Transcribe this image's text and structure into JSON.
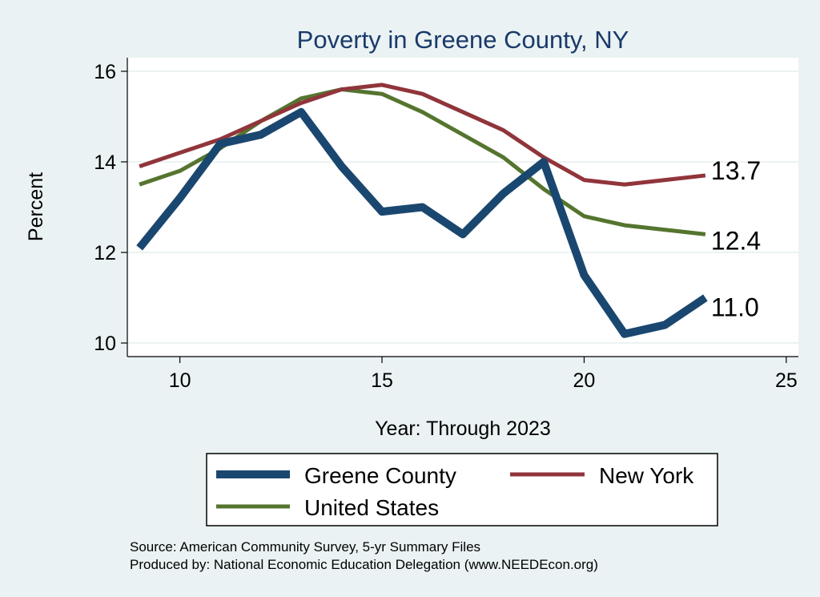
{
  "chart_data": {
    "type": "line",
    "title": "Poverty in Greene County, NY",
    "xlabel": "Year: Through 2023",
    "ylabel": "Percent",
    "xlim": [
      8.7,
      25.3
    ],
    "ylim": [
      9.7,
      16.3
    ],
    "xticks": [
      10,
      15,
      20,
      25
    ],
    "yticks": [
      10,
      12,
      14,
      16
    ],
    "grid": true,
    "x": [
      9,
      10,
      11,
      12,
      13,
      14,
      15,
      16,
      17,
      18,
      19,
      20,
      21,
      22,
      23
    ],
    "series": [
      {
        "name": "Greene County",
        "color": "#1a476f",
        "values": [
          12.1,
          13.2,
          14.4,
          14.6,
          15.1,
          13.9,
          12.9,
          13.0,
          12.4,
          13.3,
          14.0,
          11.5,
          10.2,
          10.4,
          11.0
        ],
        "end_label": "11.0"
      },
      {
        "name": "New York",
        "color": "#90353b",
        "values": [
          13.9,
          14.2,
          14.5,
          14.9,
          15.3,
          15.6,
          15.7,
          15.5,
          15.1,
          14.7,
          14.1,
          13.6,
          13.5,
          13.6,
          13.7
        ],
        "end_label": "13.7"
      },
      {
        "name": "United States",
        "color": "#55752f",
        "values": [
          13.5,
          13.8,
          14.3,
          14.9,
          15.4,
          15.6,
          15.5,
          15.1,
          14.6,
          14.1,
          13.4,
          12.8,
          12.6,
          12.5,
          12.4
        ],
        "end_label": "12.4"
      }
    ],
    "legend": {
      "position": "bottom",
      "items": [
        "Greene County",
        "New York",
        "United States"
      ]
    }
  },
  "notes": {
    "source": "Source: American Community Survey, 5-yr Summary Files",
    "produced_by": "Produced by: National Economic Education Delegation (www.NEEDEcon.org)"
  }
}
